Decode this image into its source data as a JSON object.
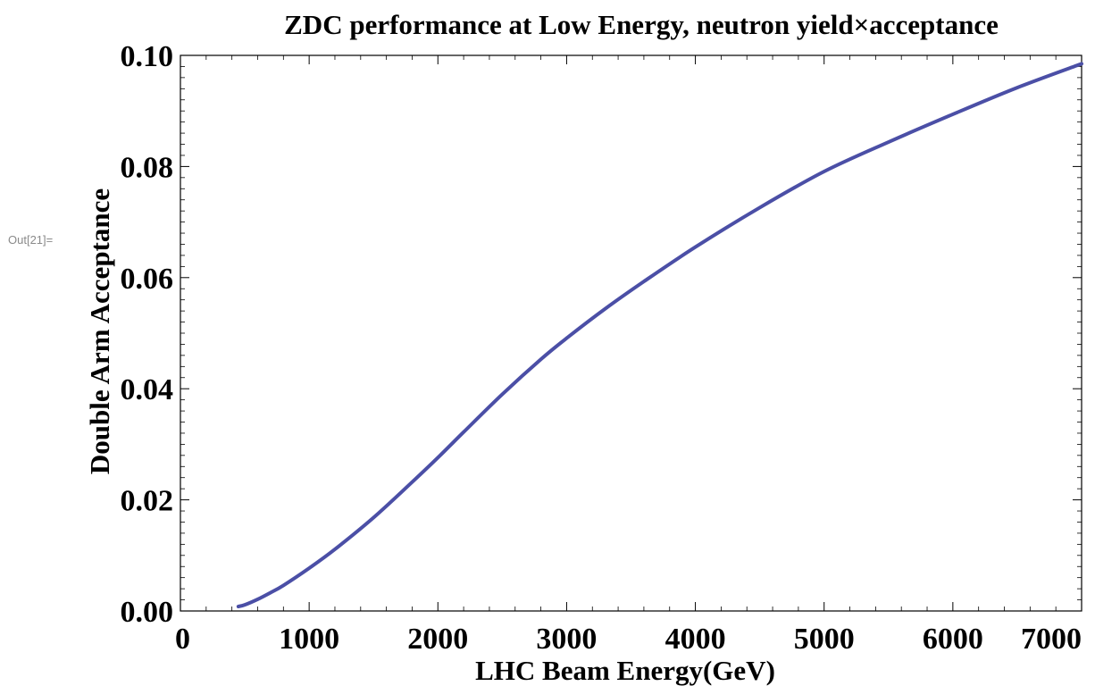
{
  "cell_label": "Out[21]=",
  "chart_data": {
    "type": "line",
    "title": "ZDC performance at Low Energy, neutron yield×acceptance",
    "xlabel": "LHC Beam Energy(GeV)",
    "ylabel": "Double Arm Acceptance",
    "xlim": [
      0,
      7000
    ],
    "ylim": [
      0,
      0.1
    ],
    "xticks": [
      0,
      1000,
      2000,
      3000,
      4000,
      5000,
      6000,
      7000
    ],
    "xtick_labels": [
      "0",
      "1000",
      "2000",
      "3000",
      "4000",
      "5000",
      "6000",
      "7000"
    ],
    "yticks": [
      0,
      0.02,
      0.04,
      0.06,
      0.08,
      0.1
    ],
    "ytick_labels": [
      "0.00",
      "0.02",
      "0.04",
      "0.06",
      "0.08",
      "0.10"
    ],
    "grid": false,
    "series": [
      {
        "color": "#4b4fa6",
        "x": [
          450,
          500,
          600,
          700,
          800,
          1000,
          1200,
          1500,
          1800,
          2000,
          2200,
          2500,
          2800,
          3000,
          3300,
          3600,
          4000,
          4500,
          5000,
          5500,
          6000,
          6500,
          7000
        ],
        "y": [
          0.0008,
          0.0011,
          0.0021,
          0.0033,
          0.0046,
          0.0077,
          0.0111,
          0.0168,
          0.0232,
          0.0276,
          0.0322,
          0.039,
          0.0453,
          0.0491,
          0.0544,
          0.0593,
          0.0655,
          0.0726,
          0.0791,
          0.0844,
          0.0894,
          0.0942,
          0.0985
        ]
      }
    ]
  }
}
